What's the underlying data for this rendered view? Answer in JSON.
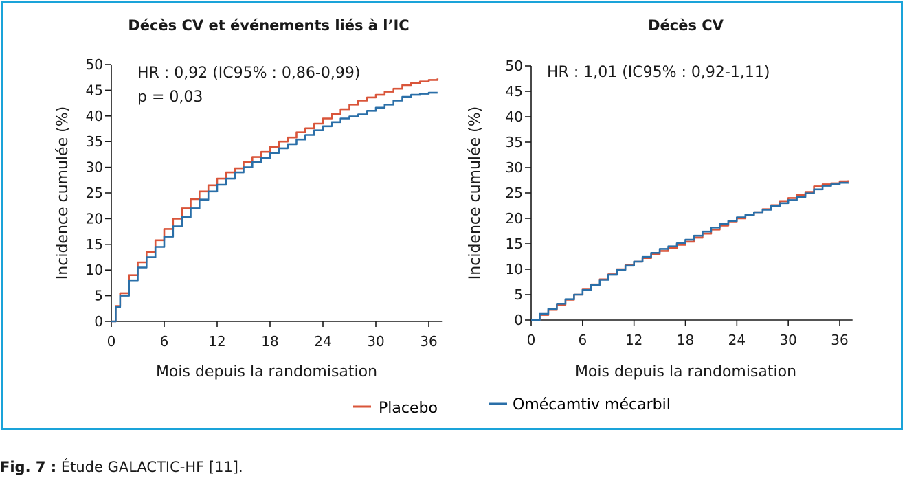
{
  "chart_data": [
    {
      "type": "line",
      "title": "Décès CV et événements liés à l’IC",
      "xlabel": "Mois depuis la randomisation",
      "ylabel": "Incidence cumulée (%)",
      "xlim": [
        0,
        37.5
      ],
      "ylim": [
        0,
        50
      ],
      "xticks": [
        "0",
        "6",
        "12",
        "18",
        "24",
        "30",
        "36"
      ],
      "yticks": [
        "0",
        "5",
        "10",
        "15",
        "20",
        "25",
        "30",
        "35",
        "40",
        "45",
        "50"
      ],
      "annotations": [
        "HR : 0,92 (IC95% : 0,86-0,99)",
        "p = 0,03"
      ],
      "grid": false,
      "series": [
        {
          "name": "Placebo",
          "x": [
            0,
            0.5,
            1,
            2,
            3,
            4,
            5,
            6,
            7,
            8,
            9,
            10,
            11,
            12,
            13,
            14,
            15,
            16,
            17,
            18,
            19,
            20,
            21,
            22,
            23,
            24,
            25,
            26,
            27,
            28,
            29,
            30,
            31,
            32,
            33,
            34,
            35,
            36,
            37
          ],
          "y": [
            0,
            3,
            5.5,
            9,
            11.5,
            13.5,
            15.8,
            18,
            20,
            22,
            23.8,
            25.3,
            26.5,
            27.8,
            29,
            29.8,
            31,
            32,
            33,
            34,
            35,
            35.8,
            36.8,
            37.6,
            38.5,
            39.5,
            40.4,
            41.3,
            42.2,
            43,
            43.6,
            44.1,
            44.7,
            45.3,
            46,
            46.4,
            46.7,
            47,
            47.3
          ]
        },
        {
          "name": "Omécamtiv mécarbil",
          "x": [
            0,
            0.5,
            1,
            2,
            3,
            4,
            5,
            6,
            7,
            8,
            9,
            10,
            11,
            12,
            13,
            14,
            15,
            16,
            17,
            18,
            19,
            20,
            21,
            22,
            23,
            24,
            25,
            26,
            27,
            28,
            29,
            30,
            31,
            32,
            33,
            34,
            35,
            36,
            37
          ],
          "y": [
            0,
            2.8,
            5,
            8,
            10.5,
            12.5,
            14.5,
            16.5,
            18.5,
            20.3,
            22,
            23.7,
            25.3,
            26.6,
            27.8,
            29,
            30,
            31,
            31.8,
            32.8,
            33.7,
            34.5,
            35.4,
            36.3,
            37.2,
            38,
            38.8,
            39.5,
            39.9,
            40.3,
            41,
            41.6,
            42.2,
            43,
            43.7,
            44.1,
            44.3,
            44.5,
            44.5
          ]
        }
      ]
    },
    {
      "type": "line",
      "title": "Décès CV",
      "xlabel": "Mois depuis la randomisation",
      "ylabel": "Incidence cumulée (%)",
      "xlim": [
        0,
        37.5
      ],
      "ylim": [
        0,
        50
      ],
      "xticks": [
        "0",
        "6",
        "12",
        "18",
        "24",
        "30",
        "36"
      ],
      "yticks": [
        "0",
        "5",
        "10",
        "15",
        "20",
        "25",
        "30",
        "35",
        "40",
        "45",
        "50"
      ],
      "annotations": [
        "HR : 1,01 (IC95% : 0,92-1,11)"
      ],
      "grid": false,
      "series": [
        {
          "name": "Placebo",
          "x": [
            0,
            1,
            2,
            3,
            4,
            5,
            6,
            7,
            8,
            9,
            10,
            11,
            12,
            13,
            14,
            15,
            16,
            17,
            18,
            19,
            20,
            21,
            22,
            23,
            24,
            25,
            26,
            27,
            28,
            29,
            30,
            31,
            32,
            33,
            34,
            35,
            36,
            37
          ],
          "y": [
            0,
            1,
            2,
            3,
            4,
            5,
            6,
            7,
            8,
            9,
            10,
            10.8,
            11.5,
            12.2,
            13,
            13.6,
            14.2,
            14.8,
            15.4,
            16.2,
            17,
            17.8,
            18.6,
            19.4,
            20,
            20.6,
            21.2,
            21.8,
            22.6,
            23.4,
            24,
            24.6,
            25.2,
            26.3,
            26.7,
            26.9,
            27.3,
            27.5
          ]
        },
        {
          "name": "Omécamtiv mécarbil",
          "x": [
            0,
            1,
            2,
            3,
            4,
            5,
            6,
            7,
            8,
            9,
            10,
            11,
            12,
            13,
            14,
            15,
            16,
            17,
            18,
            19,
            20,
            21,
            22,
            23,
            24,
            25,
            26,
            27,
            28,
            29,
            30,
            31,
            32,
            33,
            34,
            35,
            36,
            37
          ],
          "y": [
            0,
            1.2,
            2.2,
            3.2,
            4.1,
            5,
            5.9,
            6.9,
            7.9,
            8.9,
            9.9,
            10.7,
            11.5,
            12.4,
            13.2,
            14,
            14.5,
            15.1,
            15.8,
            16.6,
            17.4,
            18.2,
            18.9,
            19.5,
            20.2,
            20.7,
            21.2,
            21.7,
            22.4,
            23,
            23.6,
            24.2,
            24.9,
            25.7,
            26.4,
            26.7,
            27,
            27.1
          ]
        }
      ]
    }
  ],
  "legend": {
    "placement": "bottom-center",
    "items": [
      {
        "label": "Placebo",
        "color": "#d9553a"
      },
      {
        "label": "Omécamtiv mécarbil",
        "color": "#2a6fa8"
      }
    ]
  },
  "colors": {
    "frame": "#1aa3d9",
    "placebo": "#d9553a",
    "omecamtiv": "#2a6fa8",
    "axis": "#1a1a1a"
  },
  "caption": {
    "label": "Fig. 7 :",
    "text": " Étude GALACTIC-HF [11]."
  }
}
